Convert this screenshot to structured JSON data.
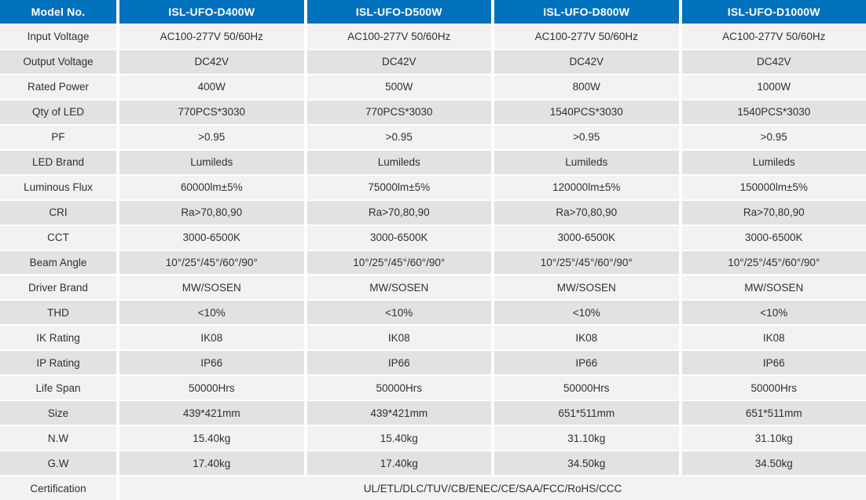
{
  "theme": {
    "header_bg": "#0071BC",
    "header_text": "#FFFFFF",
    "row_light": "#F2F2F2",
    "row_dark": "#E2E2E2",
    "cell_text": "#303030",
    "gap_color": "#FFFFFF"
  },
  "table": {
    "header": [
      "Model No.",
      "ISL-UFO-D400W",
      "ISL-UFO-D500W",
      "ISL-UFO-D800W",
      "ISL-UFO-D1000W"
    ],
    "rows": [
      {
        "label": "Input Voltage",
        "values": [
          "AC100-277V 50/60Hz",
          "AC100-277V 50/60Hz",
          "AC100-277V 50/60Hz",
          "AC100-277V 50/60Hz"
        ]
      },
      {
        "label": "Output Voltage",
        "values": [
          "DC42V",
          "DC42V",
          "DC42V",
          "DC42V"
        ]
      },
      {
        "label": "Rated Power",
        "values": [
          "400W",
          "500W",
          "800W",
          "1000W"
        ]
      },
      {
        "label": "Qty of LED",
        "values": [
          "770PCS*3030",
          "770PCS*3030",
          "1540PCS*3030",
          "1540PCS*3030"
        ]
      },
      {
        "label": "PF",
        "values": [
          ">0.95",
          ">0.95",
          ">0.95",
          ">0.95"
        ]
      },
      {
        "label": "LED Brand",
        "values": [
          "Lumileds",
          "Lumileds",
          "Lumileds",
          "Lumileds"
        ]
      },
      {
        "label": "Luminous Flux",
        "values": [
          "60000lm±5%",
          "75000lm±5%",
          "120000lm±5%",
          "150000lm±5%"
        ]
      },
      {
        "label": "CRI",
        "values": [
          "Ra>70,80,90",
          "Ra>70,80,90",
          "Ra>70,80,90",
          "Ra>70,80,90"
        ]
      },
      {
        "label": "CCT",
        "values": [
          "3000-6500K",
          "3000-6500K",
          "3000-6500K",
          "3000-6500K"
        ]
      },
      {
        "label": "Beam Angle",
        "values": [
          "10°/25°/45°/60°/90°",
          "10°/25°/45°/60°/90°",
          "10°/25°/45°/60°/90°",
          "10°/25°/45°/60°/90°"
        ]
      },
      {
        "label": "Driver Brand",
        "values": [
          "MW/SOSEN",
          "MW/SOSEN",
          "MW/SOSEN",
          "MW/SOSEN"
        ]
      },
      {
        "label": "THD",
        "values": [
          "<10%",
          "<10%",
          "<10%",
          "<10%"
        ]
      },
      {
        "label": "IK Rating",
        "values": [
          "IK08",
          "IK08",
          "IK08",
          "IK08"
        ]
      },
      {
        "label": "IP Rating",
        "values": [
          "IP66",
          "IP66",
          "IP66",
          "IP66"
        ]
      },
      {
        "label": "Life Span",
        "values": [
          "50000Hrs",
          "50000Hrs",
          "50000Hrs",
          "50000Hrs"
        ]
      },
      {
        "label": "Size",
        "values": [
          "439*421mm",
          "439*421mm",
          "651*511mm",
          "651*511mm"
        ]
      },
      {
        "label": "N.W",
        "values": [
          "15.40kg",
          "15.40kg",
          "31.10kg",
          "31.10kg"
        ]
      },
      {
        "label": "G.W",
        "values": [
          "17.40kg",
          "17.40kg",
          "34.50kg",
          "34.50kg"
        ]
      },
      {
        "label": "Certification",
        "values": [
          "UL/ETL/DLC/TUV/CB/ENEC/CE/SAA/FCC/RoHS/CCC"
        ]
      }
    ]
  }
}
